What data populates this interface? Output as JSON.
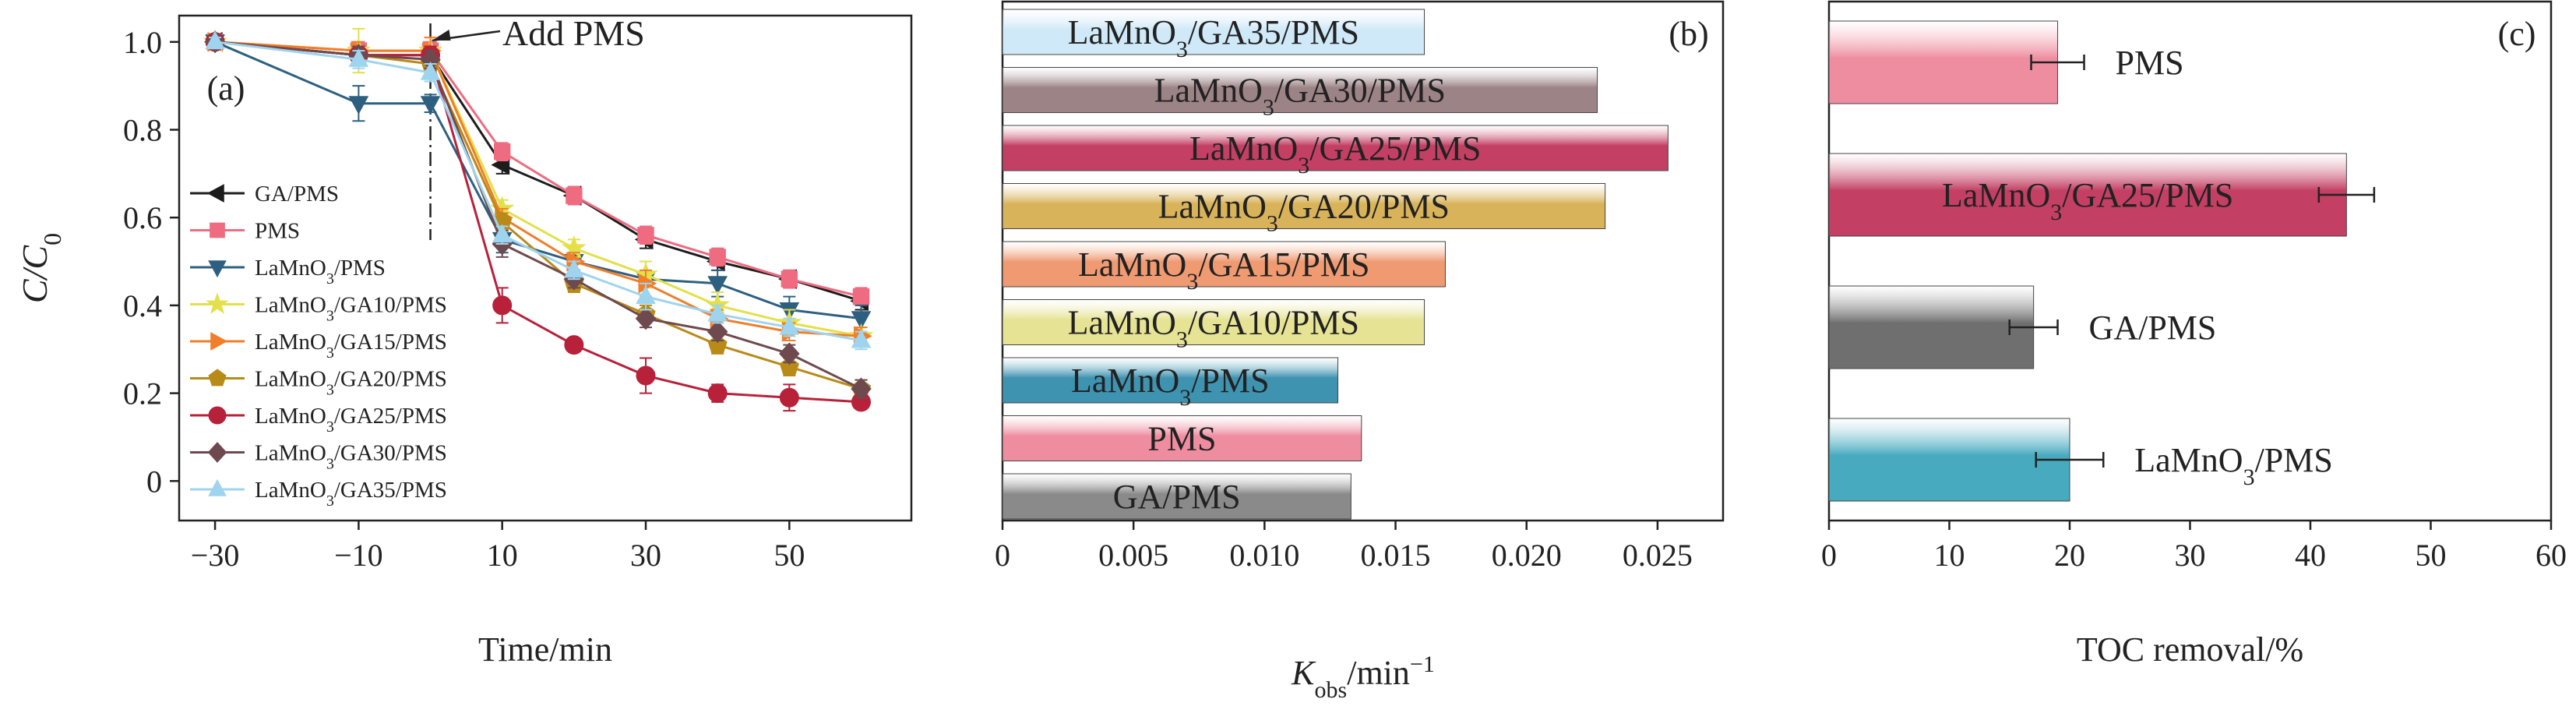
{
  "chart_data": [
    {
      "panel": "(a)",
      "type": "line",
      "xlabel": "Time/min",
      "ylabel": "C/C0",
      "ylabel_main": "C/C",
      "ylabel_sub": "0",
      "xlim": [
        -35,
        67
      ],
      "ylim": [
        -0.09,
        1.06
      ],
      "xticks": [
        -30,
        -10,
        10,
        30,
        50
      ],
      "xtick_labels": [
        "−30",
        "−10",
        "10",
        "30",
        "50"
      ],
      "yticks": [
        0,
        0.2,
        0.4,
        0.6,
        0.8,
        1.0
      ],
      "ytick_labels": [
        "0",
        "0.2",
        "0.4",
        "0.6",
        "0.8",
        "1.0"
      ],
      "annotation": "Add PMS",
      "annotation_x": 0,
      "legend_position": "left",
      "x": [
        -30,
        -10,
        0,
        10,
        20,
        30,
        40,
        50,
        60
      ],
      "series": [
        {
          "name": "GA/PMS",
          "name_main": "GA/PMS",
          "color": "#1c1c1c",
          "marker": "triangle-left",
          "values": [
            1.0,
            0.97,
            0.97,
            0.72,
            0.65,
            0.55,
            0.5,
            0.46,
            0.41
          ],
          "errors": [
            0.01,
            0.02,
            0.02,
            0.02,
            0.02,
            0.02,
            0.02,
            0.02,
            0.02
          ]
        },
        {
          "name": "PMS",
          "name_main": "PMS",
          "color": "#ef6b80",
          "marker": "square",
          "values": [
            1.0,
            0.98,
            0.98,
            0.75,
            0.65,
            0.56,
            0.51,
            0.46,
            0.42
          ],
          "errors": [
            0.01,
            0.02,
            0.02,
            0.02,
            0.02,
            0.02,
            0.02,
            0.02,
            0.02
          ]
        },
        {
          "name": "LaMnO3/PMS",
          "name_main": "LaMnO",
          "name_sub": "3",
          "name_rest": "/PMS",
          "color": "#2d6080",
          "marker": "triangle-down",
          "values": [
            1.0,
            0.86,
            0.86,
            0.55,
            0.5,
            0.46,
            0.45,
            0.39,
            0.37
          ],
          "errors": [
            0.01,
            0.04,
            0.02,
            0.03,
            0.03,
            0.04,
            0.03,
            0.03,
            0.03
          ]
        },
        {
          "name": "LaMnO3/GA10/PMS",
          "name_main": "LaMnO",
          "name_sub": "3",
          "name_rest": "/GA10/PMS",
          "color": "#e3e04a",
          "marker": "star",
          "values": [
            1.0,
            0.98,
            0.98,
            0.62,
            0.53,
            0.47,
            0.4,
            0.36,
            0.33
          ],
          "errors": [
            0.01,
            0.05,
            0.03,
            0.02,
            0.02,
            0.03,
            0.03,
            0.03,
            0.02
          ]
        },
        {
          "name": "LaMnO3/GA15/PMS",
          "name_main": "LaMnO",
          "name_sub": "3",
          "name_rest": "/GA15/PMS",
          "color": "#f07e2a",
          "marker": "triangle-right",
          "values": [
            1.0,
            0.98,
            0.98,
            0.6,
            0.5,
            0.45,
            0.37,
            0.34,
            0.33
          ],
          "errors": [
            0.01,
            0.02,
            0.03,
            0.02,
            0.02,
            0.03,
            0.02,
            0.02,
            0.02
          ]
        },
        {
          "name": "LaMnO3/GA20/PMS",
          "name_main": "LaMnO",
          "name_sub": "3",
          "name_rest": "/GA20/PMS",
          "color": "#b88a18",
          "marker": "pentagon",
          "values": [
            1.0,
            0.97,
            0.95,
            0.59,
            0.45,
            0.38,
            0.31,
            0.26,
            0.21
          ],
          "errors": [
            0.01,
            0.02,
            0.02,
            0.02,
            0.02,
            0.02,
            0.02,
            0.02,
            0.02
          ]
        },
        {
          "name": "LaMnO3/GA25/PMS",
          "name_main": "LaMnO",
          "name_sub": "3",
          "name_rest": "/GA25/PMS",
          "color": "#b8213a",
          "marker": "circle",
          "values": [
            1.0,
            0.97,
            0.97,
            0.4,
            0.31,
            0.24,
            0.2,
            0.19,
            0.18
          ],
          "errors": [
            0.01,
            0.02,
            0.02,
            0.04,
            0.01,
            0.04,
            0.02,
            0.03,
            0.01
          ]
        },
        {
          "name": "LaMnO3/GA30/PMS",
          "name_main": "LaMnO",
          "name_sub": "3",
          "name_rest": "/GA30/PMS",
          "color": "#6e4a4f",
          "marker": "diamond",
          "values": [
            1.0,
            0.97,
            0.96,
            0.54,
            0.46,
            0.37,
            0.34,
            0.29,
            0.21
          ],
          "errors": [
            0.01,
            0.02,
            0.02,
            0.03,
            0.02,
            0.02,
            0.02,
            0.02,
            0.02
          ]
        },
        {
          "name": "LaMnO3/GA35/PMS",
          "name_main": "LaMnO",
          "name_sub": "3",
          "name_rest": "/GA35/PMS",
          "color": "#9fd4ef",
          "marker": "triangle-up",
          "values": [
            1.0,
            0.96,
            0.93,
            0.56,
            0.48,
            0.42,
            0.38,
            0.35,
            0.32
          ],
          "errors": [
            0.01,
            0.02,
            0.02,
            0.02,
            0.02,
            0.03,
            0.02,
            0.02,
            0.02
          ]
        }
      ]
    },
    {
      "panel": "(b)",
      "type": "bar",
      "orientation": "horizontal",
      "xlabel": "Kobs/min−1",
      "xlabel_main": "K",
      "xlabel_sub": "obs",
      "xlabel_rest": "/min",
      "xlabel_sup": "−1",
      "xlim": [
        0,
        0.0275
      ],
      "xticks": [
        0,
        0.005,
        0.01,
        0.015,
        0.02,
        0.025
      ],
      "xtick_labels": [
        "0",
        "0.005",
        "0.010",
        "0.015",
        "0.020",
        "0.025"
      ],
      "bars": [
        {
          "name": "LaMnO3/GA35/PMS",
          "name_main": "LaMnO",
          "name_sub": "3",
          "name_rest": "/GA35/PMS",
          "value": 0.0161,
          "color": "#cfe9f8",
          "label_pos": "inside"
        },
        {
          "name": "LaMnO3/GA30/PMS",
          "name_main": "LaMnO",
          "name_sub": "3",
          "name_rest": "/GA30/PMS",
          "value": 0.0227,
          "color": "#9c8386",
          "label_pos": "inside"
        },
        {
          "name": "LaMnO3/GA25/PMS",
          "name_main": "LaMnO",
          "name_sub": "3",
          "name_rest": "/GA25/PMS",
          "value": 0.0254,
          "color": "#c33f63",
          "label_pos": "inside"
        },
        {
          "name": "LaMnO3/GA20/PMS",
          "name_main": "LaMnO",
          "name_sub": "3",
          "name_rest": "/GA20/PMS",
          "value": 0.023,
          "color": "#d9b35a",
          "label_pos": "inside"
        },
        {
          "name": "LaMnO3/GA15/PMS",
          "name_main": "LaMnO",
          "name_sub": "3",
          "name_rest": "/GA15/PMS",
          "value": 0.0169,
          "color": "#f09a72",
          "label_pos": "inside"
        },
        {
          "name": "LaMnO3/GA10/PMS",
          "name_main": "LaMnO",
          "name_sub": "3",
          "name_rest": "/GA10/PMS",
          "value": 0.0161,
          "color": "#e6e394",
          "label_pos": "inside"
        },
        {
          "name": "LaMnO3/PMS",
          "name_main": "LaMnO",
          "name_sub": "3",
          "name_rest": "/PMS",
          "value": 0.0128,
          "color": "#3e93b0",
          "label_pos": "inside"
        },
        {
          "name": "PMS",
          "name_main": "PMS",
          "value": 0.0137,
          "color": "#ef8da0",
          "label_pos": "inside"
        },
        {
          "name": "GA/PMS",
          "name_main": "GA/PMS",
          "value": 0.0133,
          "color": "#8a8a8a",
          "label_pos": "inside"
        }
      ]
    },
    {
      "panel": "(c)",
      "type": "bar",
      "orientation": "horizontal",
      "xlabel": "TOC removal/%",
      "xlim": [
        0,
        60
      ],
      "xticks": [
        0,
        10,
        20,
        30,
        40,
        50,
        60
      ],
      "xtick_labels": [
        "0",
        "10",
        "20",
        "30",
        "40",
        "50",
        "60"
      ],
      "bars": [
        {
          "name": "PMS",
          "name_main": "PMS",
          "value": 19,
          "error": 2.2,
          "color": "#ef8da0",
          "label_pos": "outside"
        },
        {
          "name": "LaMnO3/GA25/PMS",
          "name_main": "LaMnO",
          "name_sub": "3",
          "name_rest": "/GA25/PMS",
          "value": 43,
          "error": 2.3,
          "color": "#c33f63",
          "label_pos": "inside"
        },
        {
          "name": "GA/PMS",
          "name_main": "GA/PMS",
          "value": 17,
          "error": 2.0,
          "color": "#6f6f6f",
          "label_pos": "outside"
        },
        {
          "name": "LaMnO3/PMS",
          "name_main": "LaMnO",
          "name_sub": "3",
          "name_rest": "/PMS",
          "value": 20,
          "error": 2.8,
          "color": "#47aabf",
          "label_pos": "outside"
        }
      ]
    }
  ]
}
